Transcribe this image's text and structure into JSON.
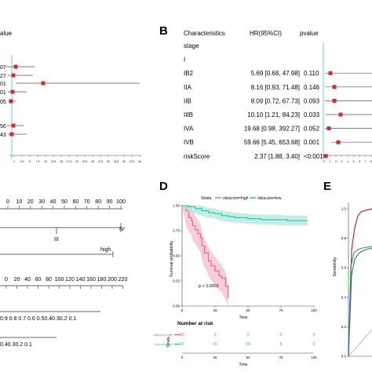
{
  "panelA": {
    "header": "alue",
    "row_pvalues": [
      "07",
      "27",
      "01",
      "01",
      "05",
      "56",
      "43"
    ],
    "axis_ticks": [
      "0",
      "2.5",
      "5",
      "7.5",
      "10",
      "12.5",
      "15",
      "17.5",
      "20",
      "22.5",
      "25",
      "27.5",
      "30",
      "32.5",
      "35",
      "37.5",
      "40"
    ]
  },
  "panelB": {
    "letter": "B",
    "headers": {
      "characteristics": "Characteristics",
      "hr": "HR(95%CI)",
      "pvalue": "pvalue"
    },
    "rows": [
      {
        "label": "stage",
        "hr": "",
        "p": ""
      },
      {
        "label": "I",
        "hr": "",
        "p": ""
      },
      {
        "label": "IB2",
        "hr": "5.69 [0.68, 47.98]",
        "p": "0.110"
      },
      {
        "label": "IIA",
        "hr": "8.16 [0.93, 71.48]",
        "p": "0.146"
      },
      {
        "label": "IIB",
        "hr": "8.09 [0.72, 67.73]",
        "p": "0.093"
      },
      {
        "label": "IIIB",
        "hr": "10.10 [1.21, 84.23]",
        "p": "0.033"
      },
      {
        "label": "IVA",
        "hr": "19.68 [0.98, 392.27]",
        "p": "0.052"
      },
      {
        "label": "IVB",
        "hr": "59.66 [5.45, 653.68]",
        "p": "0.001"
      },
      {
        "label": "riskScore",
        "hr": "2.37 [1.88, 3.40]",
        "p": "<0.001"
      }
    ],
    "axis_ticks": [
      "0",
      "1",
      "2",
      "3",
      "4",
      "5",
      "6",
      "7",
      "8"
    ]
  },
  "panelC": {
    "points_ticks": [
      "0",
      "10",
      "20",
      "30",
      "40",
      "50",
      "60",
      "70",
      "80",
      "90",
      "100"
    ],
    "stage_labels": [
      "IV",
      "III"
    ],
    "risk_label": "high",
    "total_ticks": [
      "0",
      "20",
      "40",
      "60",
      "80",
      "100",
      "120",
      "140",
      "160",
      "180",
      "200",
      "220"
    ],
    "surv_ticks": "0.9   0.8 0.7 0.6 0.50.40.30.2 0.1",
    "surv_ticks2": "0.40.30.2 0.1"
  },
  "panelD": {
    "letter": "D",
    "legend_title": "Strata",
    "legend_high": "riskscore=high",
    "legend_low": "riskscore=low",
    "ylabel": "Survival probability",
    "xlabel": "Time",
    "pvalue": "p < 0.0001",
    "yticks": [
      "1.00",
      "0.75",
      "0.50",
      "0.25",
      "0.00"
    ],
    "xticks": [
      "0",
      "25",
      "50",
      "75",
      "100"
    ],
    "risk_title": "Number at risk",
    "risk_ylabel": "Strata",
    "risk_rows": [
      {
        "name": "riskscore=high",
        "values": [
          "50",
          "3",
          "0",
          "0",
          "0"
        ]
      },
      {
        "name": "riskscore=low",
        "values": [
          "73",
          "65",
          "58",
          "8",
          "0"
        ]
      }
    ],
    "risk_xlabel": "Time"
  },
  "panelE": {
    "letter": "E",
    "ylabel": "Sensitivity",
    "yticks": [
      "1.0",
      "0.8",
      "0.6",
      "0.4",
      "0.2",
      "0.0"
    ]
  },
  "chart_data": {
    "type": "line",
    "title": "",
    "xlabel": "Time",
    "ylabel": "Survival probability",
    "xlim": [
      0,
      100
    ],
    "ylim": [
      0,
      1
    ],
    "series": [
      {
        "name": "riskscore=high",
        "x": [
          0,
          3,
          5,
          7,
          8,
          10,
          12,
          14,
          15,
          17,
          20,
          22,
          25,
          28,
          30,
          33,
          35
        ],
        "y": [
          1.0,
          0.95,
          0.88,
          0.85,
          0.8,
          0.76,
          0.72,
          0.68,
          0.6,
          0.53,
          0.45,
          0.4,
          0.35,
          0.3,
          0.28,
          0.2,
          0.08
        ]
      },
      {
        "name": "riskscore=low",
        "x": [
          0,
          5,
          10,
          15,
          20,
          25,
          30,
          35,
          40,
          50,
          60,
          70,
          80,
          90,
          95
        ],
        "y": [
          1.0,
          0.99,
          0.97,
          0.95,
          0.93,
          0.92,
          0.9,
          0.89,
          0.88,
          0.87,
          0.86,
          0.86,
          0.85,
          0.85,
          0.85
        ]
      }
    ]
  }
}
